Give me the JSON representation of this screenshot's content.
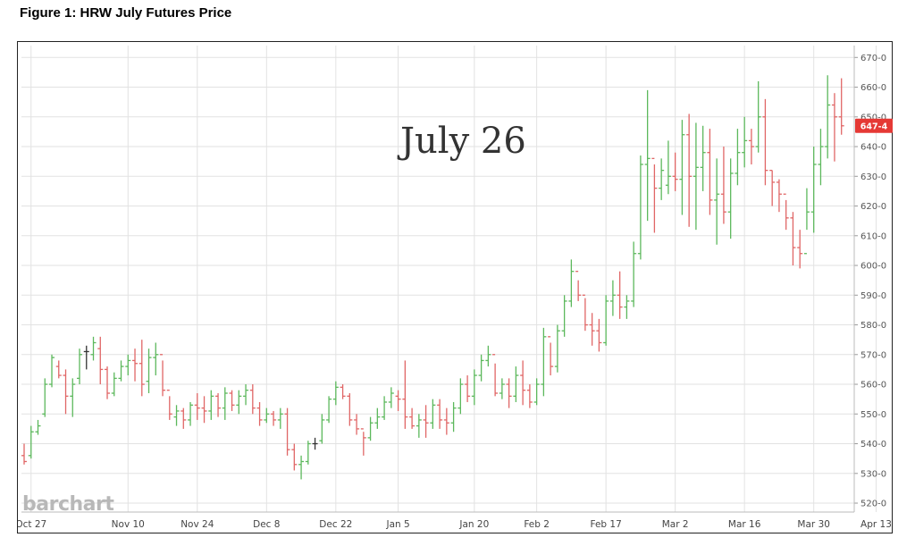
{
  "figure_title": "Figure 1: HRW July Futures Price",
  "annotation": "July 26",
  "watermark": "barchart",
  "last_price_label": "647-4",
  "colors": {
    "up": "#5cb85c",
    "down": "#e06666",
    "neutral": "#333333",
    "grid": "#e2e2e2",
    "last_badge": "#e53935"
  },
  "chart_data": {
    "type": "ohlc",
    "title": "",
    "xlabel": "",
    "ylabel": "",
    "ylim": [
      517,
      674
    ],
    "grid": true,
    "y_ticks": [
      "670-0",
      "660-0",
      "650-0",
      "640-0",
      "630-0",
      "620-0",
      "610-0",
      "600-0",
      "590-0",
      "580-0",
      "570-0",
      "560-0",
      "550-0",
      "540-0",
      "530-0",
      "520-0"
    ],
    "y_tick_values": [
      670,
      660,
      650,
      640,
      630,
      620,
      610,
      600,
      590,
      580,
      570,
      560,
      550,
      540,
      530,
      520
    ],
    "x_ticks": [
      "Oct 27",
      "Nov 10",
      "Nov 24",
      "Dec 8",
      "Dec 22",
      "Jan 5",
      "Jan 20",
      "Feb 2",
      "Feb 17",
      "Mar 2",
      "Mar 16",
      "Mar 30",
      "Apr 13"
    ],
    "x_tick_index": [
      1,
      15,
      25,
      35,
      45,
      54,
      65,
      74,
      84,
      94,
      104,
      114,
      123
    ],
    "bars": [
      [
        536,
        540,
        533,
        534
      ],
      [
        536,
        546,
        535,
        544
      ],
      [
        544,
        548,
        543,
        546
      ],
      [
        550,
        562,
        549,
        560
      ],
      [
        560,
        570,
        559,
        569
      ],
      [
        566,
        568,
        562,
        563
      ],
      [
        563,
        565,
        550,
        556
      ],
      [
        556,
        562,
        549,
        560
      ],
      [
        562,
        572,
        560,
        570
      ],
      [
        571,
        573,
        565,
        571
      ],
      [
        570,
        576,
        568,
        574
      ],
      [
        572,
        576,
        560,
        565
      ],
      [
        565,
        566,
        555,
        557
      ],
      [
        557,
        564,
        556,
        562
      ],
      [
        562,
        568,
        561,
        566
      ],
      [
        566,
        570,
        563,
        568
      ],
      [
        568,
        572,
        561,
        567
      ],
      [
        567,
        575,
        556,
        560
      ],
      [
        561,
        572,
        557,
        569
      ],
      [
        569,
        574,
        563,
        570
      ],
      [
        570,
        568,
        556,
        558
      ],
      [
        558,
        556,
        548,
        550
      ],
      [
        549,
        553,
        546,
        551
      ],
      [
        551,
        552,
        545,
        548
      ],
      [
        548,
        554,
        546,
        553
      ],
      [
        553,
        557,
        548,
        552
      ],
      [
        552,
        556,
        547,
        551
      ],
      [
        551,
        558,
        548,
        556
      ],
      [
        556,
        557,
        549,
        552
      ],
      [
        552,
        559,
        548,
        557
      ],
      [
        557,
        558,
        551,
        553
      ],
      [
        553,
        558,
        550,
        556
      ],
      [
        556,
        560,
        553,
        558
      ],
      [
        558,
        560,
        550,
        552
      ],
      [
        552,
        554,
        546,
        548
      ],
      [
        548,
        552,
        547,
        550
      ],
      [
        550,
        551,
        546,
        548
      ],
      [
        548,
        552,
        545,
        550
      ],
      [
        550,
        552,
        536,
        538
      ],
      [
        538,
        540,
        531,
        533
      ],
      [
        533,
        536,
        528,
        534
      ],
      [
        534,
        541,
        533,
        540
      ],
      [
        540,
        542,
        538,
        540
      ],
      [
        541,
        550,
        540,
        548
      ],
      [
        548,
        556,
        547,
        555
      ],
      [
        555,
        561,
        553,
        559
      ],
      [
        559,
        560,
        555,
        556
      ],
      [
        556,
        557,
        546,
        548
      ],
      [
        548,
        550,
        543,
        545
      ],
      [
        545,
        544,
        536,
        542
      ],
      [
        542,
        549,
        541,
        547
      ],
      [
        547,
        552,
        545,
        549
      ],
      [
        549,
        556,
        548,
        554
      ],
      [
        554,
        559,
        552,
        557
      ],
      [
        556,
        558,
        551,
        555
      ],
      [
        555,
        568,
        545,
        549
      ],
      [
        549,
        552,
        545,
        546
      ],
      [
        546,
        550,
        542,
        548
      ],
      [
        548,
        553,
        542,
        547
      ],
      [
        547,
        555,
        545,
        553
      ],
      [
        553,
        555,
        545,
        548
      ],
      [
        548,
        552,
        543,
        547
      ],
      [
        547,
        554,
        544,
        552
      ],
      [
        552,
        562,
        550,
        560
      ],
      [
        560,
        563,
        554,
        556
      ],
      [
        556,
        565,
        553,
        563
      ],
      [
        563,
        570,
        561,
        568
      ],
      [
        568,
        573,
        566,
        570
      ],
      [
        570,
        567,
        556,
        557
      ],
      [
        557,
        562,
        555,
        560
      ],
      [
        560,
        562,
        552,
        556
      ],
      [
        556,
        566,
        554,
        563
      ],
      [
        563,
        568,
        553,
        558
      ],
      [
        558,
        560,
        552,
        554
      ],
      [
        554,
        562,
        553,
        560
      ],
      [
        560,
        579,
        556,
        576
      ],
      [
        576,
        574,
        563,
        566
      ],
      [
        566,
        580,
        564,
        578
      ],
      [
        578,
        590,
        576,
        588
      ],
      [
        588,
        602,
        586,
        598
      ],
      [
        598,
        595,
        588,
        590
      ],
      [
        590,
        589,
        578,
        580
      ],
      [
        580,
        584,
        573,
        578
      ],
      [
        578,
        582,
        571,
        574
      ],
      [
        574,
        590,
        573,
        588
      ],
      [
        588,
        595,
        583,
        590
      ],
      [
        590,
        598,
        582,
        586
      ],
      [
        586,
        590,
        582,
        588
      ],
      [
        588,
        608,
        586,
        604
      ],
      [
        604,
        637,
        602,
        634
      ],
      [
        634,
        659,
        615,
        636
      ],
      [
        636,
        634,
        611,
        626
      ],
      [
        626,
        636,
        622,
        632
      ],
      [
        627,
        642,
        624,
        630
      ],
      [
        630,
        638,
        625,
        629
      ],
      [
        629,
        649,
        617,
        644
      ],
      [
        644,
        651,
        613,
        630
      ],
      [
        630,
        648,
        612,
        633
      ],
      [
        633,
        647,
        625,
        638
      ],
      [
        638,
        646,
        617,
        622
      ],
      [
        622,
        636,
        607,
        624
      ],
      [
        624,
        640,
        614,
        618
      ],
      [
        618,
        636,
        609,
        631
      ],
      [
        631,
        646,
        627,
        638
      ],
      [
        638,
        650,
        633,
        642
      ],
      [
        642,
        646,
        634,
        640
      ],
      [
        640,
        662,
        638,
        650
      ],
      [
        650,
        656,
        627,
        632
      ],
      [
        632,
        632,
        620,
        628
      ],
      [
        628,
        629,
        618,
        624
      ],
      [
        624,
        622,
        612,
        616
      ],
      [
        616,
        618,
        600,
        606
      ],
      [
        606,
        612,
        599,
        604
      ],
      [
        604,
        626,
        612,
        618
      ],
      [
        618,
        640,
        611,
        634
      ],
      [
        634,
        646,
        627,
        640
      ],
      [
        640,
        664,
        636,
        654
      ],
      [
        654,
        658,
        635,
        650
      ],
      [
        650,
        663,
        644,
        647
      ]
    ]
  }
}
